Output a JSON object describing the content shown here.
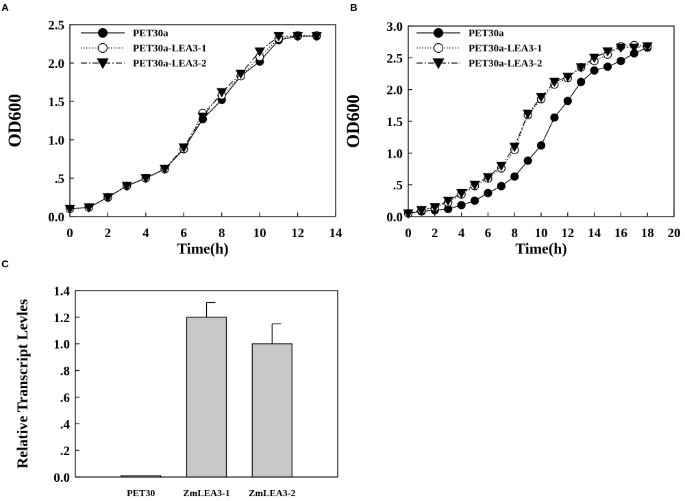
{
  "chart_data": [
    {
      "panel": "A",
      "type": "line",
      "title": "",
      "xlabel": "Time(h)",
      "ylabel": "OD600",
      "xlim": [
        0,
        14
      ],
      "ylim": [
        0,
        2.5
      ],
      "xticks": [
        "0",
        "2",
        "4",
        "6",
        "8",
        "10",
        "12",
        "14"
      ],
      "yticks": [
        "0.0",
        ".5",
        "1.0",
        "1.5",
        "2.0",
        "2.5"
      ],
      "x": [
        0,
        1,
        2,
        3,
        4,
        5,
        6,
        7,
        8,
        9,
        10,
        11,
        12,
        13
      ],
      "series": [
        {
          "name": "PET30a",
          "marker": "filled-circle",
          "line": "solid",
          "values": [
            0.1,
            0.12,
            0.25,
            0.4,
            0.5,
            0.62,
            0.88,
            1.27,
            1.52,
            1.83,
            2.02,
            2.3,
            2.35,
            2.35
          ]
        },
        {
          "name": "PET30a-LEA3-1",
          "marker": "open-circle",
          "line": "dotted",
          "values": [
            0.1,
            0.12,
            0.25,
            0.4,
            0.5,
            0.62,
            0.88,
            1.35,
            1.58,
            1.83,
            2.08,
            2.32,
            2.36,
            2.36
          ]
        },
        {
          "name": "PET30a-LEA3-2",
          "marker": "filled-triangle-down",
          "line": "dashdot",
          "values": [
            0.1,
            0.12,
            0.25,
            0.4,
            0.5,
            0.62,
            0.9,
            1.3,
            1.62,
            1.86,
            2.15,
            2.35,
            2.35,
            2.35
          ]
        }
      ],
      "legend": "top-left"
    },
    {
      "panel": "B",
      "type": "line",
      "title": "",
      "xlabel": "Time(h)",
      "ylabel": "OD600",
      "xlim": [
        0,
        20
      ],
      "ylim": [
        0,
        3.0
      ],
      "xticks": [
        "0",
        "2",
        "4",
        "6",
        "8",
        "10",
        "12",
        "14",
        "16",
        "18",
        "20"
      ],
      "yticks": [
        "0.0",
        ".5",
        "1.0",
        "1.5",
        "2.0",
        "2.5",
        "3.0"
      ],
      "x": [
        0,
        1,
        2,
        3,
        4,
        5,
        6,
        7,
        8,
        9,
        10,
        11,
        12,
        13,
        14,
        15,
        16,
        17,
        18
      ],
      "series": [
        {
          "name": "PET30a",
          "marker": "filled-circle",
          "line": "solid",
          "values": [
            0.05,
            0.08,
            0.1,
            0.12,
            0.18,
            0.25,
            0.37,
            0.48,
            0.63,
            0.88,
            1.12,
            1.56,
            1.82,
            2.12,
            2.3,
            2.36,
            2.45,
            2.57,
            2.66
          ]
        },
        {
          "name": "PET30a-LEA3-1",
          "marker": "open-circle",
          "line": "dotted",
          "values": [
            0.05,
            0.1,
            0.14,
            0.22,
            0.35,
            0.48,
            0.6,
            0.76,
            1.05,
            1.6,
            1.85,
            2.08,
            2.18,
            2.35,
            2.45,
            2.55,
            2.68,
            2.7,
            2.68
          ]
        },
        {
          "name": "PET30a-LEA3-2",
          "marker": "filled-triangle-down",
          "line": "dashdot",
          "values": [
            0.05,
            0.1,
            0.15,
            0.25,
            0.37,
            0.5,
            0.62,
            0.8,
            1.1,
            1.62,
            1.88,
            2.12,
            2.2,
            2.35,
            2.5,
            2.6,
            2.66,
            2.66,
            2.68
          ]
        }
      ],
      "legend": "top-left"
    },
    {
      "panel": "C",
      "type": "bar",
      "title": "",
      "xlabel": "",
      "ylabel": "Relative Transcript Levles",
      "ylim": [
        0,
        1.4
      ],
      "yticks": [
        "0.0",
        ".2",
        ".4",
        ".6",
        ".8",
        "1.0",
        "1.2",
        "1.4"
      ],
      "categories": [
        "PET30",
        "ZmLEA3-1",
        "ZmLEA3-2"
      ],
      "values": [
        0.01,
        1.2,
        1.0
      ],
      "errors": [
        0,
        0.11,
        0.15
      ],
      "bar_color": "#c8c8c8"
    }
  ]
}
